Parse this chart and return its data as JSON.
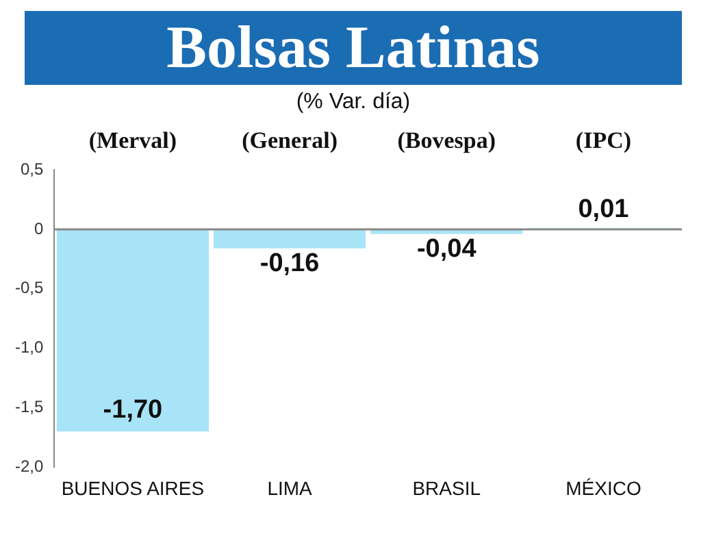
{
  "chart_data": {
    "type": "bar",
    "title": "Bolsas Latinas",
    "subtitle": "(% Var. día)",
    "categories": [
      "BUENOS AIRES",
      "LIMA",
      "BRASIL",
      "MÉXICO"
    ],
    "values": [
      -1.7,
      -0.16,
      -0.04,
      0.01
    ],
    "color": "#a8e4f8",
    "value_labels": [
      "-1,70",
      "-0,16",
      "-0,04",
      "0,01"
    ],
    "annotations": [
      "(Merval)",
      "(General)",
      "(Bovespa)",
      "(IPC)"
    ],
    "ylim": [
      -2.0,
      0.5
    ],
    "yticks": [
      {
        "value": 0.5,
        "label": "0,5"
      },
      0,
      {
        "value": -0.5,
        "label": "-0,5"
      },
      {
        "value": -1.0,
        "label": "-1,0"
      },
      {
        "value": -1.5,
        "label": "-1,5"
      },
      {
        "value": -2.0,
        "label": "-2,0"
      }
    ],
    "ref_lines": [
      {
        "axis": "y",
        "value": 0,
        "color": "#888888"
      }
    ],
    "grid": false,
    "legend": false
  }
}
